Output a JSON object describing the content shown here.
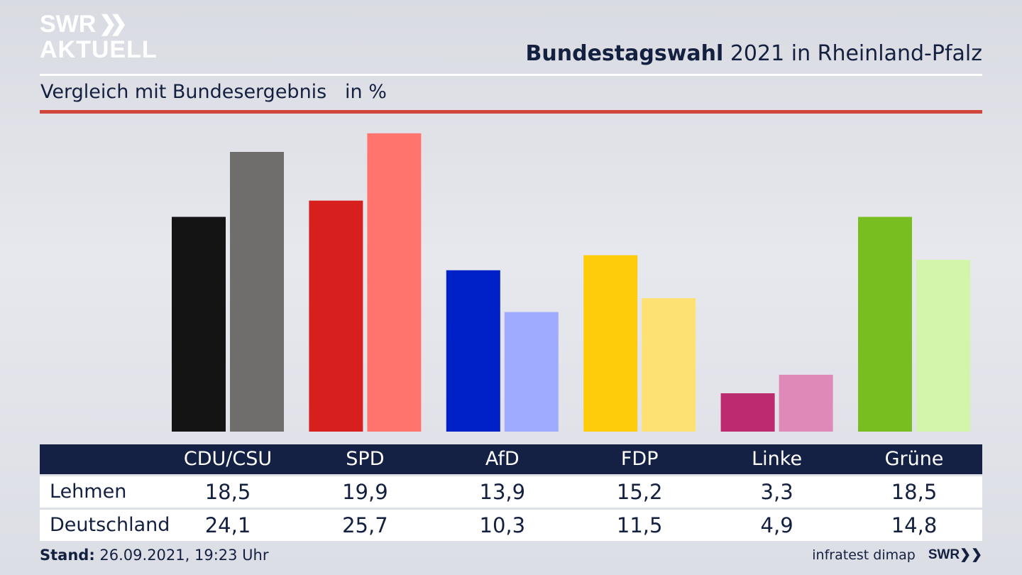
{
  "header": {
    "logo_line1": "SWR",
    "logo_line2": "AKTUELL",
    "title_bold": "Bundestagswahl",
    "title_rest": " 2021 in Rheinland-Pfalz",
    "subtitle": "Vergleich mit Bundesergebnis   in %"
  },
  "chart_data": {
    "type": "bar",
    "categories": [
      "CDU/CSU",
      "SPD",
      "AfD",
      "FDP",
      "Linke",
      "Grüne"
    ],
    "series": [
      {
        "name": "Lehmen",
        "values": [
          18.5,
          19.9,
          13.9,
          15.2,
          3.3,
          18.5
        ],
        "display": [
          "18,5",
          "19,9",
          "13,9",
          "15,2",
          "3,3",
          "18,5"
        ],
        "colors": [
          "#141414",
          "#d7201e",
          "#0020c8",
          "#ffcc0b",
          "#bc2a70",
          "#78be20"
        ]
      },
      {
        "name": "Deutschland",
        "values": [
          24.1,
          25.7,
          10.3,
          11.5,
          4.9,
          14.8
        ],
        "display": [
          "24,1",
          "25,7",
          "10,3",
          "11,5",
          "4,9",
          "14,8"
        ],
        "colors": [
          "#706e6c",
          "#ff756e",
          "#9fabff",
          "#fde173",
          "#de89b7",
          "#d3f5a9"
        ]
      }
    ]
  },
  "footer": {
    "stand_label": "Stand:",
    "stand_value": " 26.09.2021, 19:23 Uhr",
    "source": "infratest dimap",
    "logo": "SWR"
  }
}
